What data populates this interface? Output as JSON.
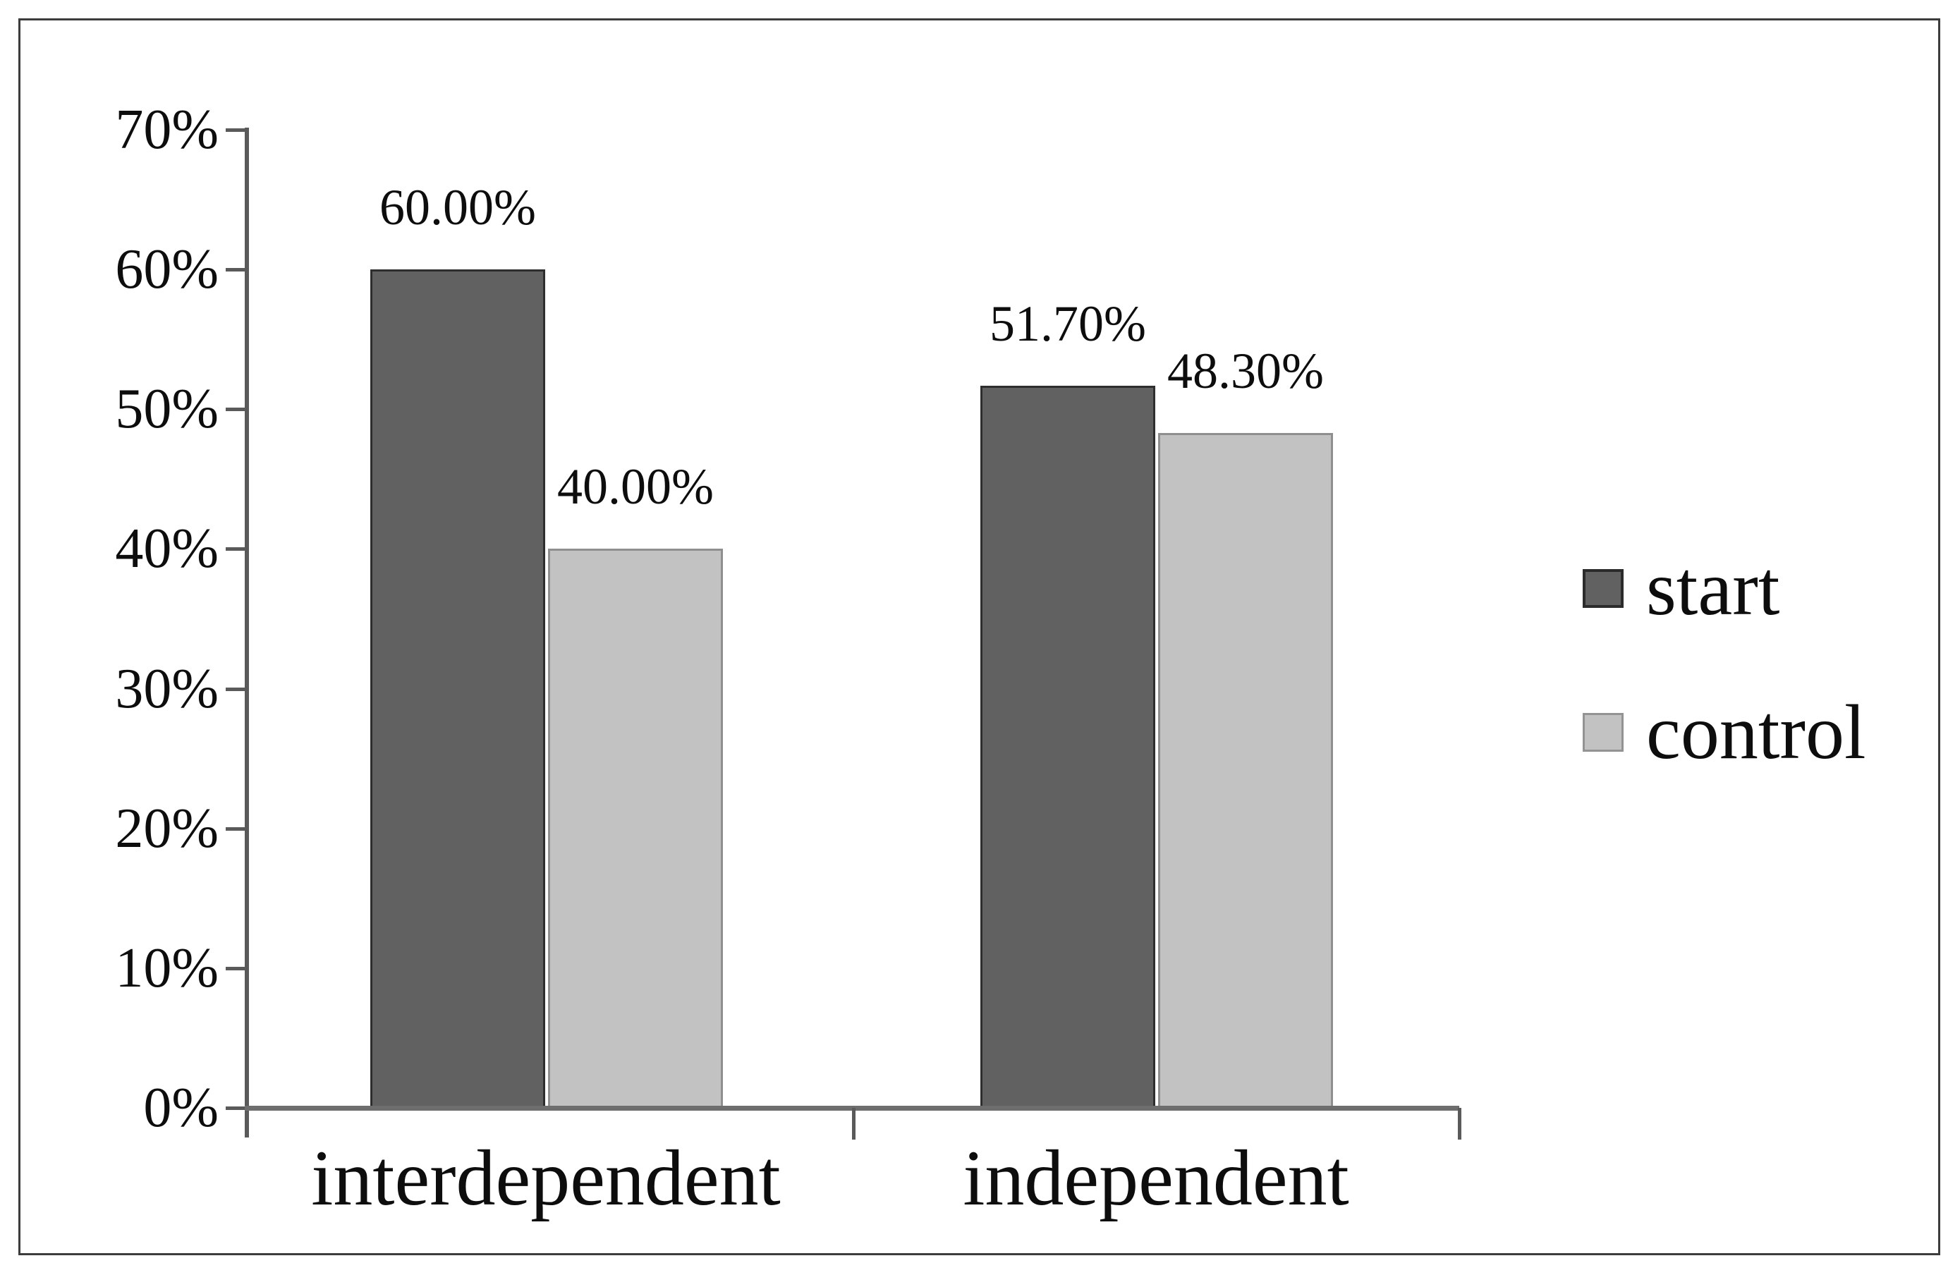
{
  "chart_data": {
    "type": "bar",
    "categories": [
      "interdependent",
      "independent"
    ],
    "series": [
      {
        "name": "start",
        "color": "#616161",
        "border_color": "#2e2e2e",
        "values": [
          60.0,
          51.7
        ],
        "value_labels": [
          "60.00%",
          "51.70%"
        ]
      },
      {
        "name": "control",
        "color": "#c2c2c2",
        "border_color": "#8f8f8f",
        "values": [
          40.0,
          48.3
        ],
        "value_labels": [
          "40.00%",
          "48.30%"
        ]
      }
    ],
    "ylim": [
      0,
      70
    ],
    "ytick_step": 10,
    "ytick_labels": [
      "0%",
      "10%",
      "20%",
      "30%",
      "40%",
      "50%",
      "60%",
      "70%"
    ],
    "grid": false,
    "legend_position": "right",
    "axis_color": "#5a5a5a",
    "text_color": "#0d0d0d"
  }
}
